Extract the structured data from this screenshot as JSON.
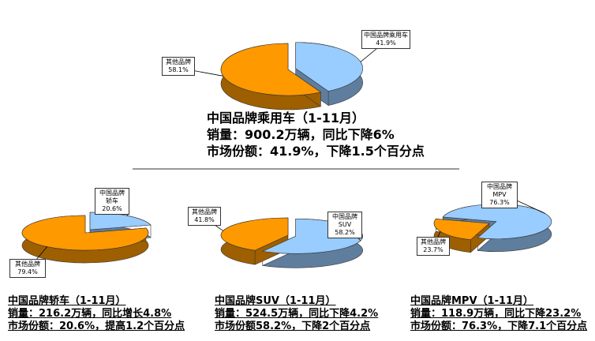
{
  "chart_data": [
    {
      "type": "pie",
      "title": "中国品牌乘用车（1-11月）",
      "notes": [
        "销量：900.2万辆，同比下降6%",
        "市场份额：41.9%，下降1.5个百分点"
      ],
      "categories": [
        "中国品牌乘用车",
        "其他品牌"
      ],
      "values": [
        41.9,
        58.1
      ],
      "value_labels": [
        "41.9%",
        "58.1%"
      ],
      "colors": [
        "#99ccff",
        "#ff9900"
      ]
    },
    {
      "type": "pie",
      "title": "中国品牌轿车（1-11月）",
      "notes": [
        "销量：216.2万辆，同比增长4.8%",
        "市场份额：20.6%，提高1.2个百分点"
      ],
      "categories": [
        "中国品牌轿车",
        "其他品牌"
      ],
      "values": [
        20.6,
        79.4
      ],
      "value_labels": [
        "20.6%",
        "79.4%"
      ],
      "colors": [
        "#99ccff",
        "#ff9900"
      ]
    },
    {
      "type": "pie",
      "title": "中国品牌SUV（1-11月）",
      "notes": [
        "销量：524.5万辆，同比下降4.2%",
        "市场份额58.2%，下降2个百分点"
      ],
      "categories": [
        "中国品牌SUV",
        "其他品牌"
      ],
      "values": [
        58.2,
        41.8
      ],
      "value_labels": [
        "58.2%",
        "41.8%"
      ],
      "colors": [
        "#99ccff",
        "#ff9900"
      ]
    },
    {
      "type": "pie",
      "title": "中国品牌MPV（1-11月）",
      "notes": [
        "销量：118.9万辆，同比下降23.2%",
        "市场份额：76.3%，下降7.1个百分点"
      ],
      "categories": [
        "中国品牌MPV",
        "其他品牌"
      ],
      "values": [
        76.3,
        23.7
      ],
      "value_labels": [
        "76.3%",
        "23.7%"
      ],
      "colors": [
        "#99ccff",
        "#ff9900"
      ]
    }
  ]
}
